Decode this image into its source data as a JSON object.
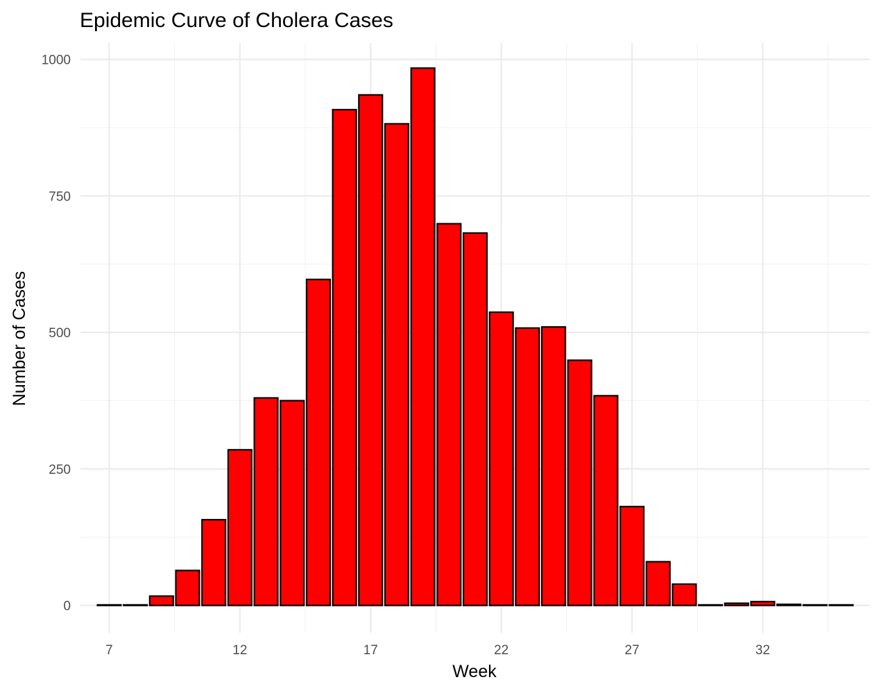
{
  "chart_data": {
    "type": "bar",
    "title": "Epidemic Curve of Cholera Cases",
    "xlabel": "Week",
    "ylabel": "Number of Cases",
    "x": [
      7,
      8,
      9,
      10,
      11,
      12,
      13,
      14,
      15,
      16,
      17,
      18,
      19,
      20,
      21,
      22,
      23,
      24,
      25,
      26,
      27,
      28,
      29,
      30,
      31,
      32,
      33,
      34,
      35
    ],
    "values": [
      1,
      1,
      17,
      64,
      157,
      285,
      380,
      375,
      597,
      908,
      935,
      882,
      984,
      699,
      682,
      537,
      508,
      510,
      449,
      384,
      181,
      80,
      39,
      1,
      4,
      7,
      2,
      1,
      1
    ],
    "xlim": [
      5.9,
      36.1
    ],
    "ylim": [
      -50,
      1030
    ],
    "x_ticks": [
      7,
      12,
      17,
      22,
      27,
      32
    ],
    "y_ticks": [
      0,
      250,
      500,
      750,
      1000
    ],
    "grid": true,
    "legend": "none",
    "bar_color": "#ff0000",
    "bar_edge_color": "#000000"
  }
}
